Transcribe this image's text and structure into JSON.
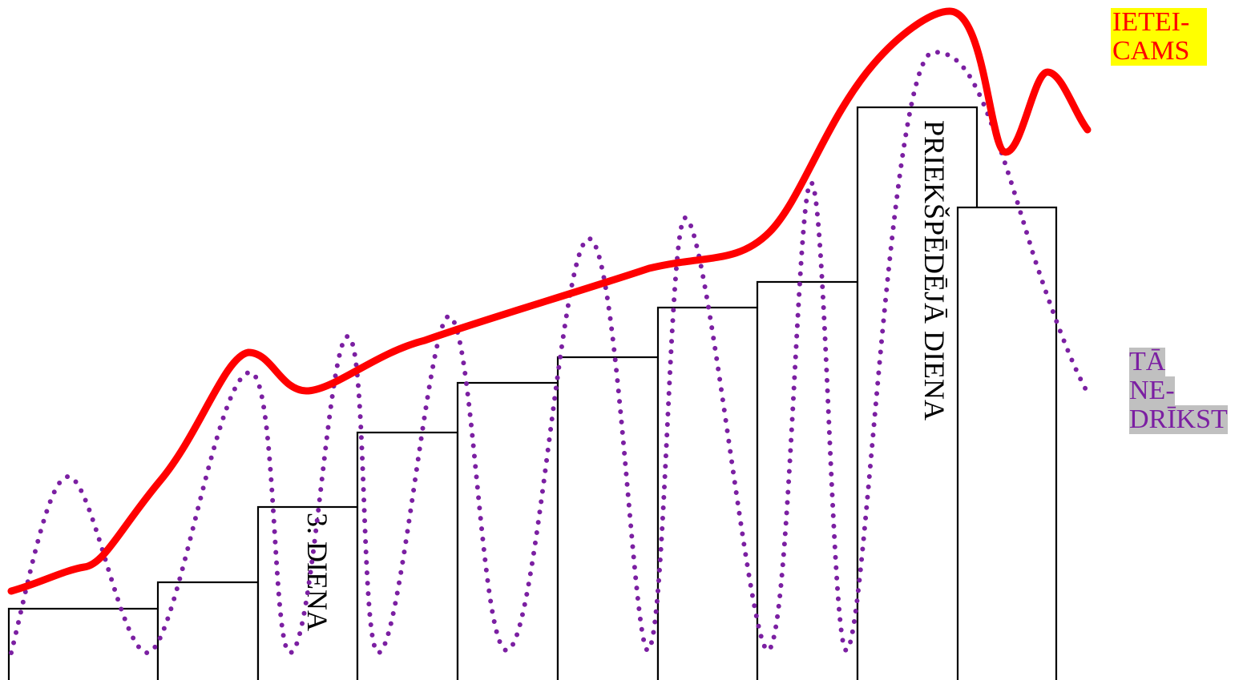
{
  "diagram": {
    "bars": [
      {
        "label": ""
      },
      {
        "label": ""
      },
      {
        "label": "3. DIENA"
      },
      {
        "label": ""
      },
      {
        "label": ""
      },
      {
        "label": ""
      },
      {
        "label": ""
      },
      {
        "label": ""
      },
      {
        "label": "PRIEKŠPĒDĒJĀ DIENA"
      },
      {
        "label": ""
      }
    ],
    "legend": {
      "recommended": {
        "line1": "IETEI-",
        "line2": "CAMS",
        "color": "#ff0000",
        "background": "#ffff00"
      },
      "forbidden": {
        "line1": "TĀ",
        "line2": "NE-",
        "line3": "DRĪKST",
        "color": "#7b1fa2",
        "background": "#c0c0c0"
      }
    },
    "curves": {
      "recommended": {
        "style": "solid",
        "color": "#ff0000"
      },
      "forbidden": {
        "style": "dotted",
        "color": "#7b1fa2"
      }
    }
  }
}
